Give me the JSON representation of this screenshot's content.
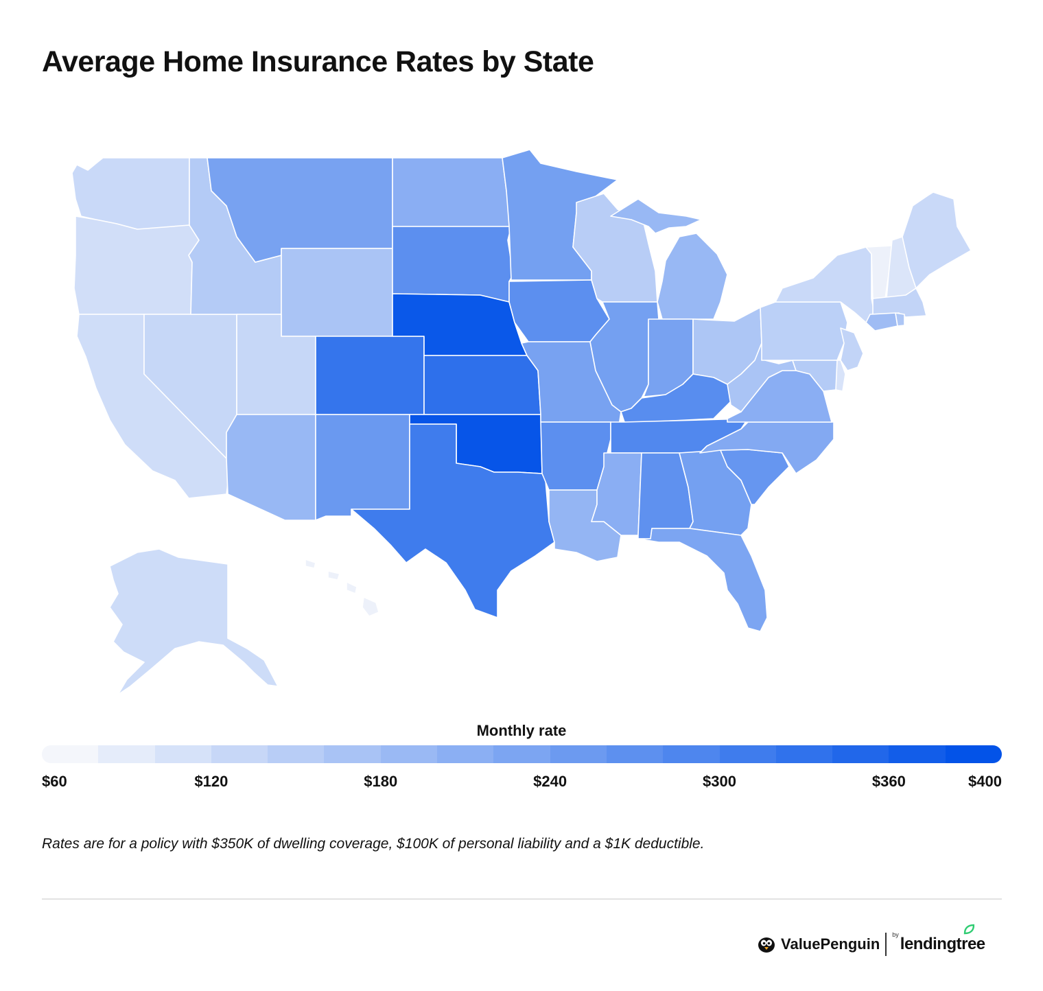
{
  "title": "Average Home Insurance Rates by State",
  "legend": {
    "title": "Monthly rate",
    "min": 60,
    "max": 400,
    "ticks": [
      "$60",
      "$120",
      "$180",
      "$240",
      "$300",
      "$360",
      "$400"
    ],
    "tick_values": [
      60,
      120,
      180,
      240,
      300,
      360,
      400
    ],
    "color_low": "#f4f6fb",
    "color_high": "#0353e8",
    "steps": 17
  },
  "note": "Rates are for a policy with $350K of dwelling coverage, $100K of personal liability and a $1K deductible.",
  "brand": {
    "name": "ValuePenguin",
    "by": "by",
    "partner": "lendingtree"
  },
  "colors": {
    "border": "#ffffff",
    "divider": "#e2e2e2",
    "accent": "#0353e8",
    "leaf": "#2ecc71"
  },
  "map_data": {
    "unit": "monthly rate ($)",
    "states": [
      {
        "id": "WA",
        "value": 120
      },
      {
        "id": "OR",
        "value": 110
      },
      {
        "id": "CA",
        "value": 112
      },
      {
        "id": "NV",
        "value": 125
      },
      {
        "id": "ID",
        "value": 150
      },
      {
        "id": "MT",
        "value": 235
      },
      {
        "id": "WY",
        "value": 165
      },
      {
        "id": "UT",
        "value": 125
      },
      {
        "id": "AZ",
        "value": 190
      },
      {
        "id": "CO",
        "value": 330
      },
      {
        "id": "NM",
        "value": 255
      },
      {
        "id": "ND",
        "value": 210
      },
      {
        "id": "SD",
        "value": 275
      },
      {
        "id": "NE",
        "value": 390
      },
      {
        "id": "KS",
        "value": 340
      },
      {
        "id": "OK",
        "value": 395
      },
      {
        "id": "TX",
        "value": 315
      },
      {
        "id": "MN",
        "value": 240
      },
      {
        "id": "IA",
        "value": 275
      },
      {
        "id": "MO",
        "value": 235
      },
      {
        "id": "AR",
        "value": 275
      },
      {
        "id": "LA",
        "value": 195
      },
      {
        "id": "WI",
        "value": 145
      },
      {
        "id": "IL",
        "value": 240
      },
      {
        "id": "MI",
        "value": 190
      },
      {
        "id": "IN",
        "value": 235
      },
      {
        "id": "OH",
        "value": 160
      },
      {
        "id": "KY",
        "value": 280
      },
      {
        "id": "TN",
        "value": 290
      },
      {
        "id": "MS",
        "value": 210
      },
      {
        "id": "AL",
        "value": 270
      },
      {
        "id": "GA",
        "value": 240
      },
      {
        "id": "FL",
        "value": 230
      },
      {
        "id": "SC",
        "value": 260
      },
      {
        "id": "NC",
        "value": 220
      },
      {
        "id": "VA",
        "value": 210
      },
      {
        "id": "WV",
        "value": 165
      },
      {
        "id": "PA",
        "value": 140
      },
      {
        "id": "NY",
        "value": 120
      },
      {
        "id": "VT",
        "value": 70
      },
      {
        "id": "NH",
        "value": 95
      },
      {
        "id": "ME",
        "value": 120
      },
      {
        "id": "MA",
        "value": 130
      },
      {
        "id": "CT",
        "value": 180
      },
      {
        "id": "RI",
        "value": 160
      },
      {
        "id": "NJ",
        "value": 130
      },
      {
        "id": "DE",
        "value": 100
      },
      {
        "id": "MD",
        "value": 150
      },
      {
        "id": "AK",
        "value": 115
      },
      {
        "id": "HI",
        "value": 70
      }
    ]
  }
}
